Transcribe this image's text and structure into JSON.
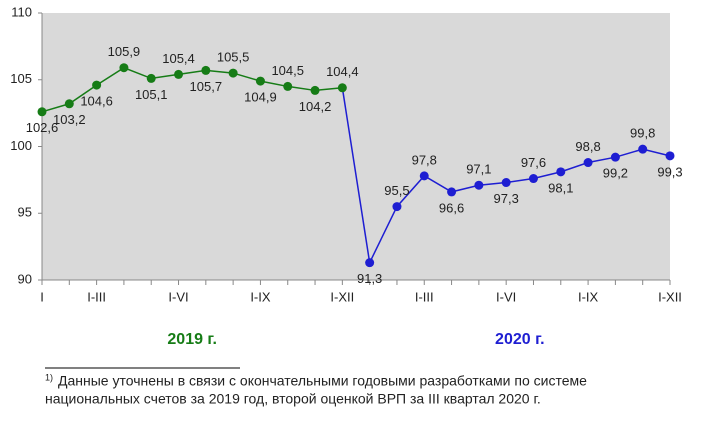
{
  "chart_data": {
    "type": "line",
    "categories": [
      "I",
      null,
      "I-III",
      null,
      null,
      "I-VI",
      null,
      null,
      "I-IX",
      null,
      null,
      "I-XII",
      null,
      null,
      "I-III",
      null,
      null,
      "I-VI",
      null,
      null,
      "I-IX",
      null,
      null,
      "I-XII"
    ],
    "series": [
      {
        "name": "2019 г.",
        "color": "#167c16",
        "values": [
          102.6,
          103.2,
          104.6,
          105.9,
          105.1,
          105.4,
          105.7,
          105.5,
          104.9,
          104.5,
          104.2,
          104.4,
          null,
          null,
          null,
          null,
          null,
          null,
          null,
          null,
          null,
          null,
          null,
          null
        ],
        "value_labels": [
          "102,6",
          "103,2",
          "104,6",
          "105,9",
          "105,1",
          "105,4",
          "105,7",
          "105,5",
          "104,9",
          "104,5",
          "104,2",
          "104,4",
          null,
          null,
          null,
          null,
          null,
          null,
          null,
          null,
          null,
          null,
          null,
          null
        ]
      },
      {
        "name": "2020 г.",
        "color": "#1e1ed2",
        "values": [
          null,
          null,
          null,
          null,
          null,
          null,
          null,
          null,
          null,
          null,
          null,
          null,
          91.3,
          95.5,
          97.8,
          96.6,
          97.1,
          97.3,
          97.6,
          98.1,
          98.8,
          99.2,
          99.8,
          99.3
        ],
        "value_labels": [
          null,
          null,
          null,
          null,
          null,
          null,
          null,
          null,
          null,
          null,
          null,
          null,
          "91,3",
          "95,5",
          "97,8",
          "96,6",
          "97,1",
          "97,3",
          "97,6",
          "98,1",
          "98,8",
          "99,2",
          "99,8",
          "99,3"
        ]
      }
    ],
    "ylim": [
      90,
      110
    ],
    "yticks": [
      90,
      95,
      100,
      105,
      110
    ],
    "grid": false,
    "footnote": {
      "marker": "1)",
      "lines": [
        "Данные уточнены в связи с окончательными годовыми разработками по системе",
        "национальных счетов за 2019 год, второй оценкой ВРП за III квартал 2020 г."
      ]
    }
  }
}
